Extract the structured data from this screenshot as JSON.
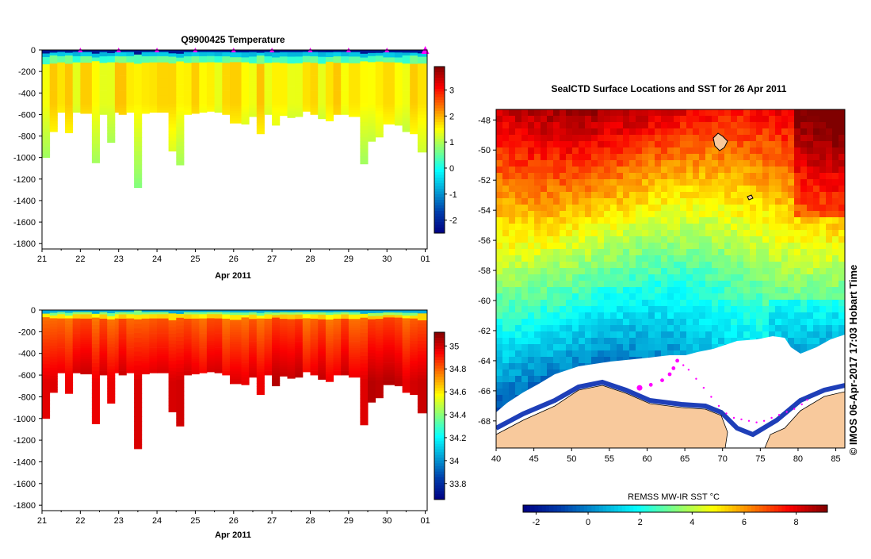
{
  "chart_data": [
    {
      "type": "heatmap",
      "title": "Q9900425  Temperature",
      "xlabel": "Apr 2011",
      "x_ticks": [
        "21",
        "22",
        "23",
        "24",
        "25",
        "26",
        "27",
        "28",
        "29",
        "30",
        "01"
      ],
      "xlim": [
        21,
        31.05
      ],
      "ylim": [
        0,
        -1850
      ],
      "y_ticks": [
        "0",
        "-200",
        "-400",
        "-600",
        "-800",
        "-1000",
        "-1200",
        "-1400",
        "-1600",
        "-1800"
      ],
      "y_tick_values": [
        0,
        -200,
        -400,
        -600,
        -800,
        -1000,
        -1200,
        -1400,
        -1600,
        -1800
      ],
      "colorbar": {
        "range": [
          -2.5,
          3.9
        ],
        "ticks": [
          "3",
          "2",
          "1",
          "0",
          "-1",
          "-2"
        ],
        "tick_values": [
          3,
          2,
          1,
          0,
          -1,
          -2
        ]
      },
      "profile_days": [
        21.0,
        21.2,
        21.4,
        21.6,
        21.8,
        22.0,
        22.3,
        22.5,
        22.7,
        22.9,
        23.0,
        23.2,
        23.4,
        23.6,
        23.8,
        24.0,
        24.3,
        24.5,
        24.7,
        24.9,
        25.1,
        25.3,
        25.5,
        25.7,
        25.9,
        26.2,
        26.4,
        26.6,
        26.8,
        27.0,
        27.2,
        27.4,
        27.6,
        27.8,
        28.0,
        28.2,
        28.4,
        28.6,
        28.8,
        29.0,
        29.3,
        29.5,
        29.7,
        29.9,
        30.2,
        30.4,
        30.6,
        30.8
      ],
      "profile_max_depth": [
        -1000,
        -760,
        -580,
        -770,
        -580,
        -590,
        -1050,
        -600,
        -860,
        -580,
        -600,
        -580,
        -1280,
        -590,
        -580,
        -580,
        -940,
        -1070,
        -600,
        -590,
        -580,
        -570,
        -580,
        -600,
        -680,
        -690,
        -620,
        -780,
        -600,
        -700,
        -610,
        -630,
        -620,
        -570,
        -600,
        -640,
        -660,
        -600,
        -600,
        -620,
        -1060,
        -850,
        -810,
        -690,
        -700,
        -760,
        -780,
        -950
      ],
      "markers_days": [
        22,
        23,
        24,
        25,
        26,
        27,
        28,
        29,
        30,
        31
      ]
    },
    {
      "type": "heatmap",
      "title": "",
      "xlabel": "Apr 2011",
      "x_ticks": [
        "21",
        "22",
        "23",
        "24",
        "25",
        "26",
        "27",
        "28",
        "29",
        "30",
        "01"
      ],
      "xlim": [
        21,
        31.05
      ],
      "ylim": [
        0,
        -1850
      ],
      "y_ticks": [
        "0",
        "-200",
        "-400",
        "-600",
        "-800",
        "-1000",
        "-1200",
        "-1400",
        "-1600",
        "-1800"
      ],
      "y_tick_values": [
        0,
        -200,
        -400,
        -600,
        -800,
        -1000,
        -1200,
        -1400,
        -1600,
        -1800
      ],
      "colorbar": {
        "range": [
          33.66,
          35.12
        ],
        "ticks": [
          "35",
          "34.8",
          "34.6",
          "34.4",
          "34.2",
          "34",
          "33.8"
        ],
        "tick_values": [
          35,
          34.8,
          34.6,
          34.4,
          34.2,
          34,
          33.8
        ]
      }
    },
    {
      "type": "heatmap",
      "title": "SealCTD Surface Locations and SST for 26 Apr 2011",
      "x_ticks": [
        "40",
        "45",
        "50",
        "55",
        "60",
        "65",
        "70",
        "75",
        "80",
        "85"
      ],
      "x_tick_values": [
        40,
        45,
        50,
        55,
        60,
        65,
        70,
        75,
        80,
        85
      ],
      "y_ticks": [
        "-48",
        "-50",
        "-52",
        "-54",
        "-56",
        "-58",
        "-60",
        "-62",
        "-64",
        "-66",
        "-68"
      ],
      "y_tick_values": [
        -48,
        -50,
        -52,
        -54,
        -56,
        -58,
        -60,
        -62,
        -64,
        -66,
        -68
      ],
      "xlim": [
        40,
        86.2
      ],
      "ylim": [
        -47.3,
        -69.8
      ],
      "colorbar_label": "REMSS MW-IR SST °C",
      "colorbar": {
        "range": [
          -2.5,
          9.2
        ],
        "ticks": [
          "-2",
          "0",
          "2",
          "4",
          "6",
          "8"
        ],
        "tick_values": [
          -2,
          0,
          2,
          4,
          6,
          8
        ]
      },
      "credit": "© IMOS 06-Apr-2017 17:03 Hobart Time",
      "seal_track_lonlat": [
        [
          59.0,
          -65.8
        ],
        [
          60.5,
          -65.6
        ],
        [
          62.0,
          -65.3
        ],
        [
          63.0,
          -64.9
        ],
        [
          63.5,
          -64.5
        ],
        [
          64.0,
          -64.0
        ],
        [
          64.8,
          -64.3
        ],
        [
          65.5,
          -64.6
        ],
        [
          66.5,
          -65.2
        ],
        [
          67.5,
          -65.8
        ],
        [
          68.5,
          -66.4
        ],
        [
          69.5,
          -67.0
        ],
        [
          70.5,
          -67.5
        ],
        [
          71.5,
          -67.8
        ],
        [
          72.5,
          -67.9
        ],
        [
          73.5,
          -68.0
        ],
        [
          74.5,
          -68.1
        ],
        [
          75.5,
          -68.0
        ],
        [
          76.5,
          -67.8
        ],
        [
          77.5,
          -67.6
        ],
        [
          78.5,
          -67.4
        ],
        [
          79.5,
          -67.2
        ],
        [
          80.5,
          -66.9
        ],
        [
          81.2,
          -66.6
        ]
      ]
    }
  ]
}
